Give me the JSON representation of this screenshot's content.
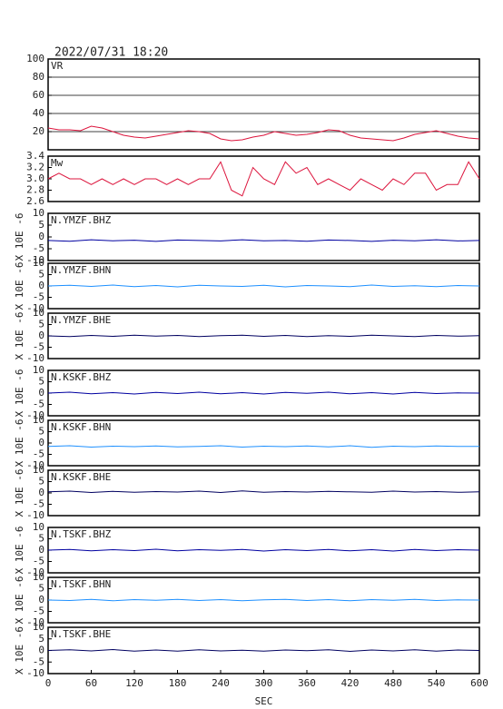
{
  "chart_data": [
    {
      "type": "line",
      "title": "2022/07/31 18:20",
      "label": "VR",
      "x": [
        0,
        15,
        30,
        45,
        60,
        75,
        90,
        105,
        120,
        135,
        150,
        165,
        180,
        195,
        210,
        225,
        240,
        255,
        270,
        285,
        300,
        315,
        330,
        345,
        360,
        375,
        390,
        405,
        420,
        435,
        450,
        465,
        480,
        495,
        510,
        525,
        540,
        555,
        570,
        585,
        600
      ],
      "series": [
        {
          "name": "VR",
          "color": "#dc143c",
          "values": [
            24,
            22,
            22,
            21,
            26,
            24,
            20,
            16,
            14,
            13,
            15,
            17,
            19,
            21,
            20,
            18,
            12,
            10,
            11,
            14,
            16,
            20,
            18,
            16,
            17,
            19,
            22,
            21,
            16,
            13,
            12,
            11,
            10,
            13,
            17,
            19,
            21,
            18,
            15,
            13,
            12
          ]
        }
      ],
      "xlim": [
        0,
        600
      ],
      "ylim": [
        0,
        100
      ],
      "yticks": [
        20,
        40,
        60,
        80,
        100
      ],
      "grid": true
    },
    {
      "type": "line",
      "label": "Mw",
      "x": [
        0,
        15,
        30,
        45,
        60,
        75,
        90,
        105,
        120,
        135,
        150,
        165,
        180,
        195,
        210,
        225,
        240,
        255,
        270,
        285,
        300,
        315,
        330,
        345,
        360,
        375,
        390,
        405,
        420,
        435,
        450,
        465,
        480,
        495,
        510,
        525,
        540,
        555,
        570,
        585,
        600
      ],
      "series": [
        {
          "name": "Mw",
          "color": "#dc143c",
          "values": [
            3.0,
            3.1,
            3.0,
            3.0,
            2.9,
            3.0,
            2.9,
            3.0,
            2.9,
            3.0,
            3.0,
            2.9,
            3.0,
            2.9,
            3.0,
            3.0,
            3.3,
            2.8,
            2.7,
            3.2,
            3.0,
            2.9,
            3.3,
            3.1,
            3.2,
            2.9,
            3.0,
            2.9,
            2.8,
            3.0,
            2.9,
            2.8,
            3.0,
            2.9,
            3.1,
            3.1,
            2.8,
            2.9,
            2.9,
            3.3,
            3.0
          ]
        }
      ],
      "xlim": [
        0,
        600
      ],
      "ylim": [
        2.6,
        3.4
      ],
      "yticks": [
        2.6,
        2.8,
        {
          "value": 3,
          "label": "3.0"
        },
        3.2,
        3.4
      ],
      "grid": false
    },
    {
      "type": "line",
      "label": "N.YMZF.BHZ",
      "y_label": "X 10E -6",
      "x": [
        0,
        30,
        60,
        90,
        120,
        150,
        180,
        210,
        240,
        270,
        300,
        330,
        360,
        390,
        420,
        450,
        480,
        510,
        540,
        570,
        600
      ],
      "series": [
        {
          "name": "N.YMZF.BHZ",
          "color": "#0000a0",
          "values": [
            -1.5,
            -1.8,
            -1.2,
            -1.6,
            -1.4,
            -1.9,
            -1.3,
            -1.5,
            -1.7,
            -1.2,
            -1.6,
            -1.5,
            -1.8,
            -1.3,
            -1.5,
            -1.9,
            -1.4,
            -1.6,
            -1.2,
            -1.7,
            -1.5
          ]
        }
      ],
      "xlim": [
        0,
        600
      ],
      "ylim": [
        -10,
        10
      ],
      "yticks": [
        -10,
        -5,
        0,
        5,
        10
      ]
    },
    {
      "type": "line",
      "label": "N.YMZF.BHN",
      "y_label": "X 10E -6",
      "x": [
        0,
        30,
        60,
        90,
        120,
        150,
        180,
        210,
        240,
        270,
        300,
        330,
        360,
        390,
        420,
        450,
        480,
        510,
        540,
        570,
        600
      ],
      "series": [
        {
          "name": "N.YMZF.BHN",
          "color": "#1e90ff",
          "values": [
            0,
            0.3,
            -0.2,
            0.4,
            -0.3,
            0.2,
            -0.4,
            0.3,
            0,
            -0.2,
            0.3,
            -0.4,
            0.2,
            0,
            -0.3,
            0.4,
            -0.2,
            0.1,
            -0.3,
            0.2,
            0
          ]
        }
      ],
      "xlim": [
        0,
        600
      ],
      "ylim": [
        -10,
        10
      ],
      "yticks": [
        -10,
        -5,
        0,
        5,
        10
      ]
    },
    {
      "type": "line",
      "label": "N.YMZF.BHE",
      "y_label": "X 10E -6",
      "x": [
        0,
        30,
        60,
        90,
        120,
        150,
        180,
        210,
        240,
        270,
        300,
        330,
        360,
        390,
        420,
        450,
        480,
        510,
        540,
        570,
        600
      ],
      "series": [
        {
          "name": "N.YMZF.BHE",
          "color": "#000060",
          "values": [
            0,
            -0.3,
            0.2,
            -0.2,
            0.3,
            -0.1,
            0.2,
            -0.3,
            0.1,
            0.3,
            -0.2,
            0.2,
            -0.3,
            0.1,
            -0.2,
            0.3,
            0,
            -0.3,
            0.2,
            -0.1,
            0.1
          ]
        }
      ],
      "xlim": [
        0,
        600
      ],
      "ylim": [
        -10,
        10
      ],
      "yticks": [
        -10,
        -5,
        0,
        5,
        10
      ]
    },
    {
      "type": "line",
      "label": "N.KSKF.BHZ",
      "y_label": "X 10E -6",
      "x": [
        0,
        30,
        60,
        90,
        120,
        150,
        180,
        210,
        240,
        270,
        300,
        330,
        360,
        390,
        420,
        450,
        480,
        510,
        540,
        570,
        600
      ],
      "series": [
        {
          "name": "N.KSKF.BHZ",
          "color": "#0000a0",
          "values": [
            0,
            0.4,
            -0.3,
            0.2,
            -0.4,
            0.3,
            -0.2,
            0.4,
            -0.3,
            0.2,
            -0.4,
            0.3,
            -0.1,
            0.4,
            -0.3,
            0.2,
            -0.4,
            0.3,
            -0.2,
            0.1,
            0
          ]
        }
      ],
      "xlim": [
        0,
        600
      ],
      "ylim": [
        -10,
        10
      ],
      "yticks": [
        -10,
        -5,
        0,
        5,
        10
      ]
    },
    {
      "type": "line",
      "label": "N.KSKF.BHN",
      "y_label": "X 10E -6",
      "x": [
        0,
        30,
        60,
        90,
        120,
        150,
        180,
        210,
        240,
        270,
        300,
        330,
        360,
        390,
        420,
        450,
        480,
        510,
        540,
        570,
        600
      ],
      "series": [
        {
          "name": "N.KSKF.BHN",
          "color": "#1e90ff",
          "values": [
            -1.5,
            -1.2,
            -1.8,
            -1.4,
            -1.6,
            -1.3,
            -1.7,
            -1.5,
            -1.2,
            -1.8,
            -1.4,
            -1.6,
            -1.3,
            -1.7,
            -1.2,
            -1.9,
            -1.4,
            -1.6,
            -1.3,
            -1.5,
            -1.5
          ]
        }
      ],
      "xlim": [
        0,
        600
      ],
      "ylim": [
        -10,
        10
      ],
      "yticks": [
        -10,
        -5,
        0,
        5,
        10
      ]
    },
    {
      "type": "line",
      "label": "N.KSKF.BHE",
      "y_label": "X 10E -6",
      "x": [
        0,
        30,
        60,
        90,
        120,
        150,
        180,
        210,
        240,
        270,
        300,
        330,
        360,
        390,
        420,
        450,
        480,
        510,
        540,
        570,
        600
      ],
      "series": [
        {
          "name": "N.KSKF.BHE",
          "color": "#000060",
          "values": [
            0.5,
            0.8,
            0.2,
            0.7,
            0.3,
            0.6,
            0.4,
            0.8,
            0.2,
            0.9,
            0.3,
            0.6,
            0.4,
            0.7,
            0.5,
            0.3,
            0.8,
            0.4,
            0.6,
            0.3,
            0.5
          ]
        }
      ],
      "xlim": [
        0,
        600
      ],
      "ylim": [
        -10,
        10
      ],
      "yticks": [
        -10,
        -5,
        0,
        5,
        10
      ]
    },
    {
      "type": "line",
      "label": "N.TSKF.BHZ",
      "y_label": "X 10E -6",
      "x": [
        0,
        30,
        60,
        90,
        120,
        150,
        180,
        210,
        240,
        270,
        300,
        330,
        360,
        390,
        420,
        450,
        480,
        510,
        540,
        570,
        600
      ],
      "series": [
        {
          "name": "N.TSKF.BHZ",
          "color": "#0000a0",
          "values": [
            0,
            0.3,
            -0.3,
            0.2,
            -0.2,
            0.4,
            -0.3,
            0.2,
            -0.1,
            0.3,
            -0.4,
            0.2,
            -0.2,
            0.3,
            -0.3,
            0.2,
            -0.4,
            0.3,
            -0.2,
            0.2,
            0
          ]
        }
      ],
      "xlim": [
        0,
        600
      ],
      "ylim": [
        -10,
        10
      ],
      "yticks": [
        -10,
        -5,
        0,
        5,
        10
      ]
    },
    {
      "type": "line",
      "label": "N.TSKF.BHN",
      "y_label": "X 10E -6",
      "x": [
        0,
        30,
        60,
        90,
        120,
        150,
        180,
        210,
        240,
        270,
        300,
        330,
        360,
        390,
        420,
        450,
        480,
        510,
        540,
        570,
        600
      ],
      "series": [
        {
          "name": "N.TSKF.BHN",
          "color": "#1e90ff",
          "values": [
            0,
            -0.2,
            0.3,
            -0.3,
            0.2,
            -0.1,
            0.3,
            -0.2,
            0.2,
            -0.3,
            0.1,
            0.3,
            -0.2,
            0.2,
            -0.3,
            0.2,
            -0.1,
            0.3,
            -0.2,
            0.1,
            0
          ]
        }
      ],
      "xlim": [
        0,
        600
      ],
      "ylim": [
        -10,
        10
      ],
      "yticks": [
        -10,
        -5,
        0,
        5,
        10
      ]
    },
    {
      "type": "line",
      "label": "N.TSKF.BHE",
      "y_label": "X 10E -6",
      "x": [
        0,
        30,
        60,
        90,
        120,
        150,
        180,
        210,
        240,
        270,
        300,
        330,
        360,
        390,
        420,
        450,
        480,
        510,
        540,
        570,
        600
      ],
      "series": [
        {
          "name": "N.TSKF.BHE",
          "color": "#000060",
          "values": [
            0,
            0.3,
            -0.2,
            0.4,
            -0.3,
            0.2,
            -0.3,
            0.3,
            -0.2,
            0.1,
            -0.3,
            0.2,
            -0.1,
            0.3,
            -0.4,
            0.2,
            -0.2,
            0.3,
            -0.3,
            0.2,
            0
          ]
        }
      ],
      "xlim": [
        0,
        600
      ],
      "ylim": [
        -10,
        10
      ],
      "yticks": [
        -10,
        -5,
        0,
        5,
        10
      ],
      "xticks": [
        0,
        60,
        120,
        180,
        240,
        300,
        360,
        420,
        480,
        540,
        600
      ],
      "x_label": "SEC"
    }
  ]
}
